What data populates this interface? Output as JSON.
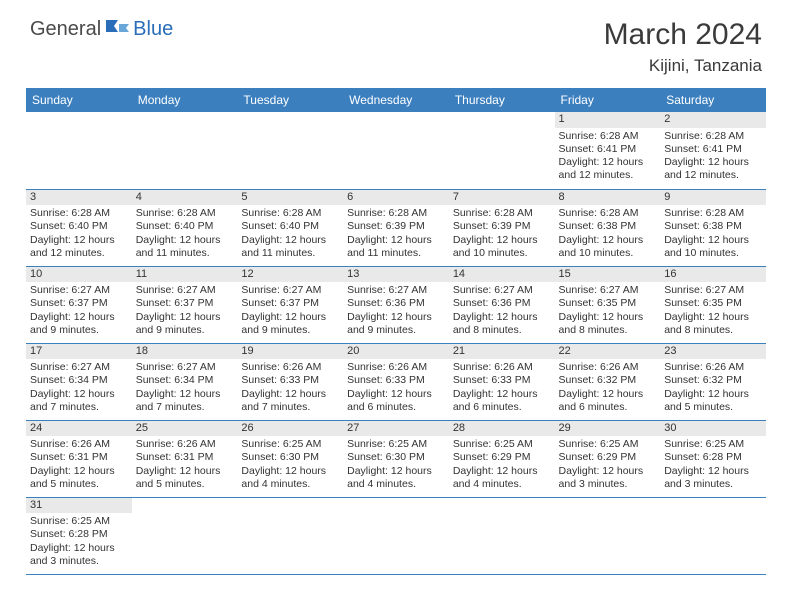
{
  "logo": {
    "general": "General",
    "blue": "Blue"
  },
  "title": "March 2024",
  "location": "Kijini, Tanzania",
  "colors": {
    "header_bg": "#3b7fbf",
    "header_text": "#ffffff",
    "daynum_bg": "#e9e9e9",
    "border": "#3b7fbf",
    "text": "#333333",
    "logo_general": "#4a4a4a",
    "logo_blue": "#2a6db8"
  },
  "fonts": {
    "title_size": 30,
    "location_size": 17,
    "weekday_size": 12,
    "cell_size": 10.5
  },
  "weekdays": [
    "Sunday",
    "Monday",
    "Tuesday",
    "Wednesday",
    "Thursday",
    "Friday",
    "Saturday"
  ],
  "weeks": [
    [
      {
        "blank": true
      },
      {
        "blank": true
      },
      {
        "blank": true
      },
      {
        "blank": true
      },
      {
        "blank": true
      },
      {
        "day": "1",
        "sunrise": "Sunrise: 6:28 AM",
        "sunset": "Sunset: 6:41 PM",
        "daylight": "Daylight: 12 hours and 12 minutes."
      },
      {
        "day": "2",
        "sunrise": "Sunrise: 6:28 AM",
        "sunset": "Sunset: 6:41 PM",
        "daylight": "Daylight: 12 hours and 12 minutes."
      }
    ],
    [
      {
        "day": "3",
        "sunrise": "Sunrise: 6:28 AM",
        "sunset": "Sunset: 6:40 PM",
        "daylight": "Daylight: 12 hours and 12 minutes."
      },
      {
        "day": "4",
        "sunrise": "Sunrise: 6:28 AM",
        "sunset": "Sunset: 6:40 PM",
        "daylight": "Daylight: 12 hours and 11 minutes."
      },
      {
        "day": "5",
        "sunrise": "Sunrise: 6:28 AM",
        "sunset": "Sunset: 6:40 PM",
        "daylight": "Daylight: 12 hours and 11 minutes."
      },
      {
        "day": "6",
        "sunrise": "Sunrise: 6:28 AM",
        "sunset": "Sunset: 6:39 PM",
        "daylight": "Daylight: 12 hours and 11 minutes."
      },
      {
        "day": "7",
        "sunrise": "Sunrise: 6:28 AM",
        "sunset": "Sunset: 6:39 PM",
        "daylight": "Daylight: 12 hours and 10 minutes."
      },
      {
        "day": "8",
        "sunrise": "Sunrise: 6:28 AM",
        "sunset": "Sunset: 6:38 PM",
        "daylight": "Daylight: 12 hours and 10 minutes."
      },
      {
        "day": "9",
        "sunrise": "Sunrise: 6:28 AM",
        "sunset": "Sunset: 6:38 PM",
        "daylight": "Daylight: 12 hours and 10 minutes."
      }
    ],
    [
      {
        "day": "10",
        "sunrise": "Sunrise: 6:27 AM",
        "sunset": "Sunset: 6:37 PM",
        "daylight": "Daylight: 12 hours and 9 minutes."
      },
      {
        "day": "11",
        "sunrise": "Sunrise: 6:27 AM",
        "sunset": "Sunset: 6:37 PM",
        "daylight": "Daylight: 12 hours and 9 minutes."
      },
      {
        "day": "12",
        "sunrise": "Sunrise: 6:27 AM",
        "sunset": "Sunset: 6:37 PM",
        "daylight": "Daylight: 12 hours and 9 minutes."
      },
      {
        "day": "13",
        "sunrise": "Sunrise: 6:27 AM",
        "sunset": "Sunset: 6:36 PM",
        "daylight": "Daylight: 12 hours and 9 minutes."
      },
      {
        "day": "14",
        "sunrise": "Sunrise: 6:27 AM",
        "sunset": "Sunset: 6:36 PM",
        "daylight": "Daylight: 12 hours and 8 minutes."
      },
      {
        "day": "15",
        "sunrise": "Sunrise: 6:27 AM",
        "sunset": "Sunset: 6:35 PM",
        "daylight": "Daylight: 12 hours and 8 minutes."
      },
      {
        "day": "16",
        "sunrise": "Sunrise: 6:27 AM",
        "sunset": "Sunset: 6:35 PM",
        "daylight": "Daylight: 12 hours and 8 minutes."
      }
    ],
    [
      {
        "day": "17",
        "sunrise": "Sunrise: 6:27 AM",
        "sunset": "Sunset: 6:34 PM",
        "daylight": "Daylight: 12 hours and 7 minutes."
      },
      {
        "day": "18",
        "sunrise": "Sunrise: 6:27 AM",
        "sunset": "Sunset: 6:34 PM",
        "daylight": "Daylight: 12 hours and 7 minutes."
      },
      {
        "day": "19",
        "sunrise": "Sunrise: 6:26 AM",
        "sunset": "Sunset: 6:33 PM",
        "daylight": "Daylight: 12 hours and 7 minutes."
      },
      {
        "day": "20",
        "sunrise": "Sunrise: 6:26 AM",
        "sunset": "Sunset: 6:33 PM",
        "daylight": "Daylight: 12 hours and 6 minutes."
      },
      {
        "day": "21",
        "sunrise": "Sunrise: 6:26 AM",
        "sunset": "Sunset: 6:33 PM",
        "daylight": "Daylight: 12 hours and 6 minutes."
      },
      {
        "day": "22",
        "sunrise": "Sunrise: 6:26 AM",
        "sunset": "Sunset: 6:32 PM",
        "daylight": "Daylight: 12 hours and 6 minutes."
      },
      {
        "day": "23",
        "sunrise": "Sunrise: 6:26 AM",
        "sunset": "Sunset: 6:32 PM",
        "daylight": "Daylight: 12 hours and 5 minutes."
      }
    ],
    [
      {
        "day": "24",
        "sunrise": "Sunrise: 6:26 AM",
        "sunset": "Sunset: 6:31 PM",
        "daylight": "Daylight: 12 hours and 5 minutes."
      },
      {
        "day": "25",
        "sunrise": "Sunrise: 6:26 AM",
        "sunset": "Sunset: 6:31 PM",
        "daylight": "Daylight: 12 hours and 5 minutes."
      },
      {
        "day": "26",
        "sunrise": "Sunrise: 6:25 AM",
        "sunset": "Sunset: 6:30 PM",
        "daylight": "Daylight: 12 hours and 4 minutes."
      },
      {
        "day": "27",
        "sunrise": "Sunrise: 6:25 AM",
        "sunset": "Sunset: 6:30 PM",
        "daylight": "Daylight: 12 hours and 4 minutes."
      },
      {
        "day": "28",
        "sunrise": "Sunrise: 6:25 AM",
        "sunset": "Sunset: 6:29 PM",
        "daylight": "Daylight: 12 hours and 4 minutes."
      },
      {
        "day": "29",
        "sunrise": "Sunrise: 6:25 AM",
        "sunset": "Sunset: 6:29 PM",
        "daylight": "Daylight: 12 hours and 3 minutes."
      },
      {
        "day": "30",
        "sunrise": "Sunrise: 6:25 AM",
        "sunset": "Sunset: 6:28 PM",
        "daylight": "Daylight: 12 hours and 3 minutes."
      }
    ],
    [
      {
        "day": "31",
        "sunrise": "Sunrise: 6:25 AM",
        "sunset": "Sunset: 6:28 PM",
        "daylight": "Daylight: 12 hours and 3 minutes."
      },
      {
        "blank": true
      },
      {
        "blank": true
      },
      {
        "blank": true
      },
      {
        "blank": true
      },
      {
        "blank": true
      },
      {
        "blank": true
      }
    ]
  ]
}
